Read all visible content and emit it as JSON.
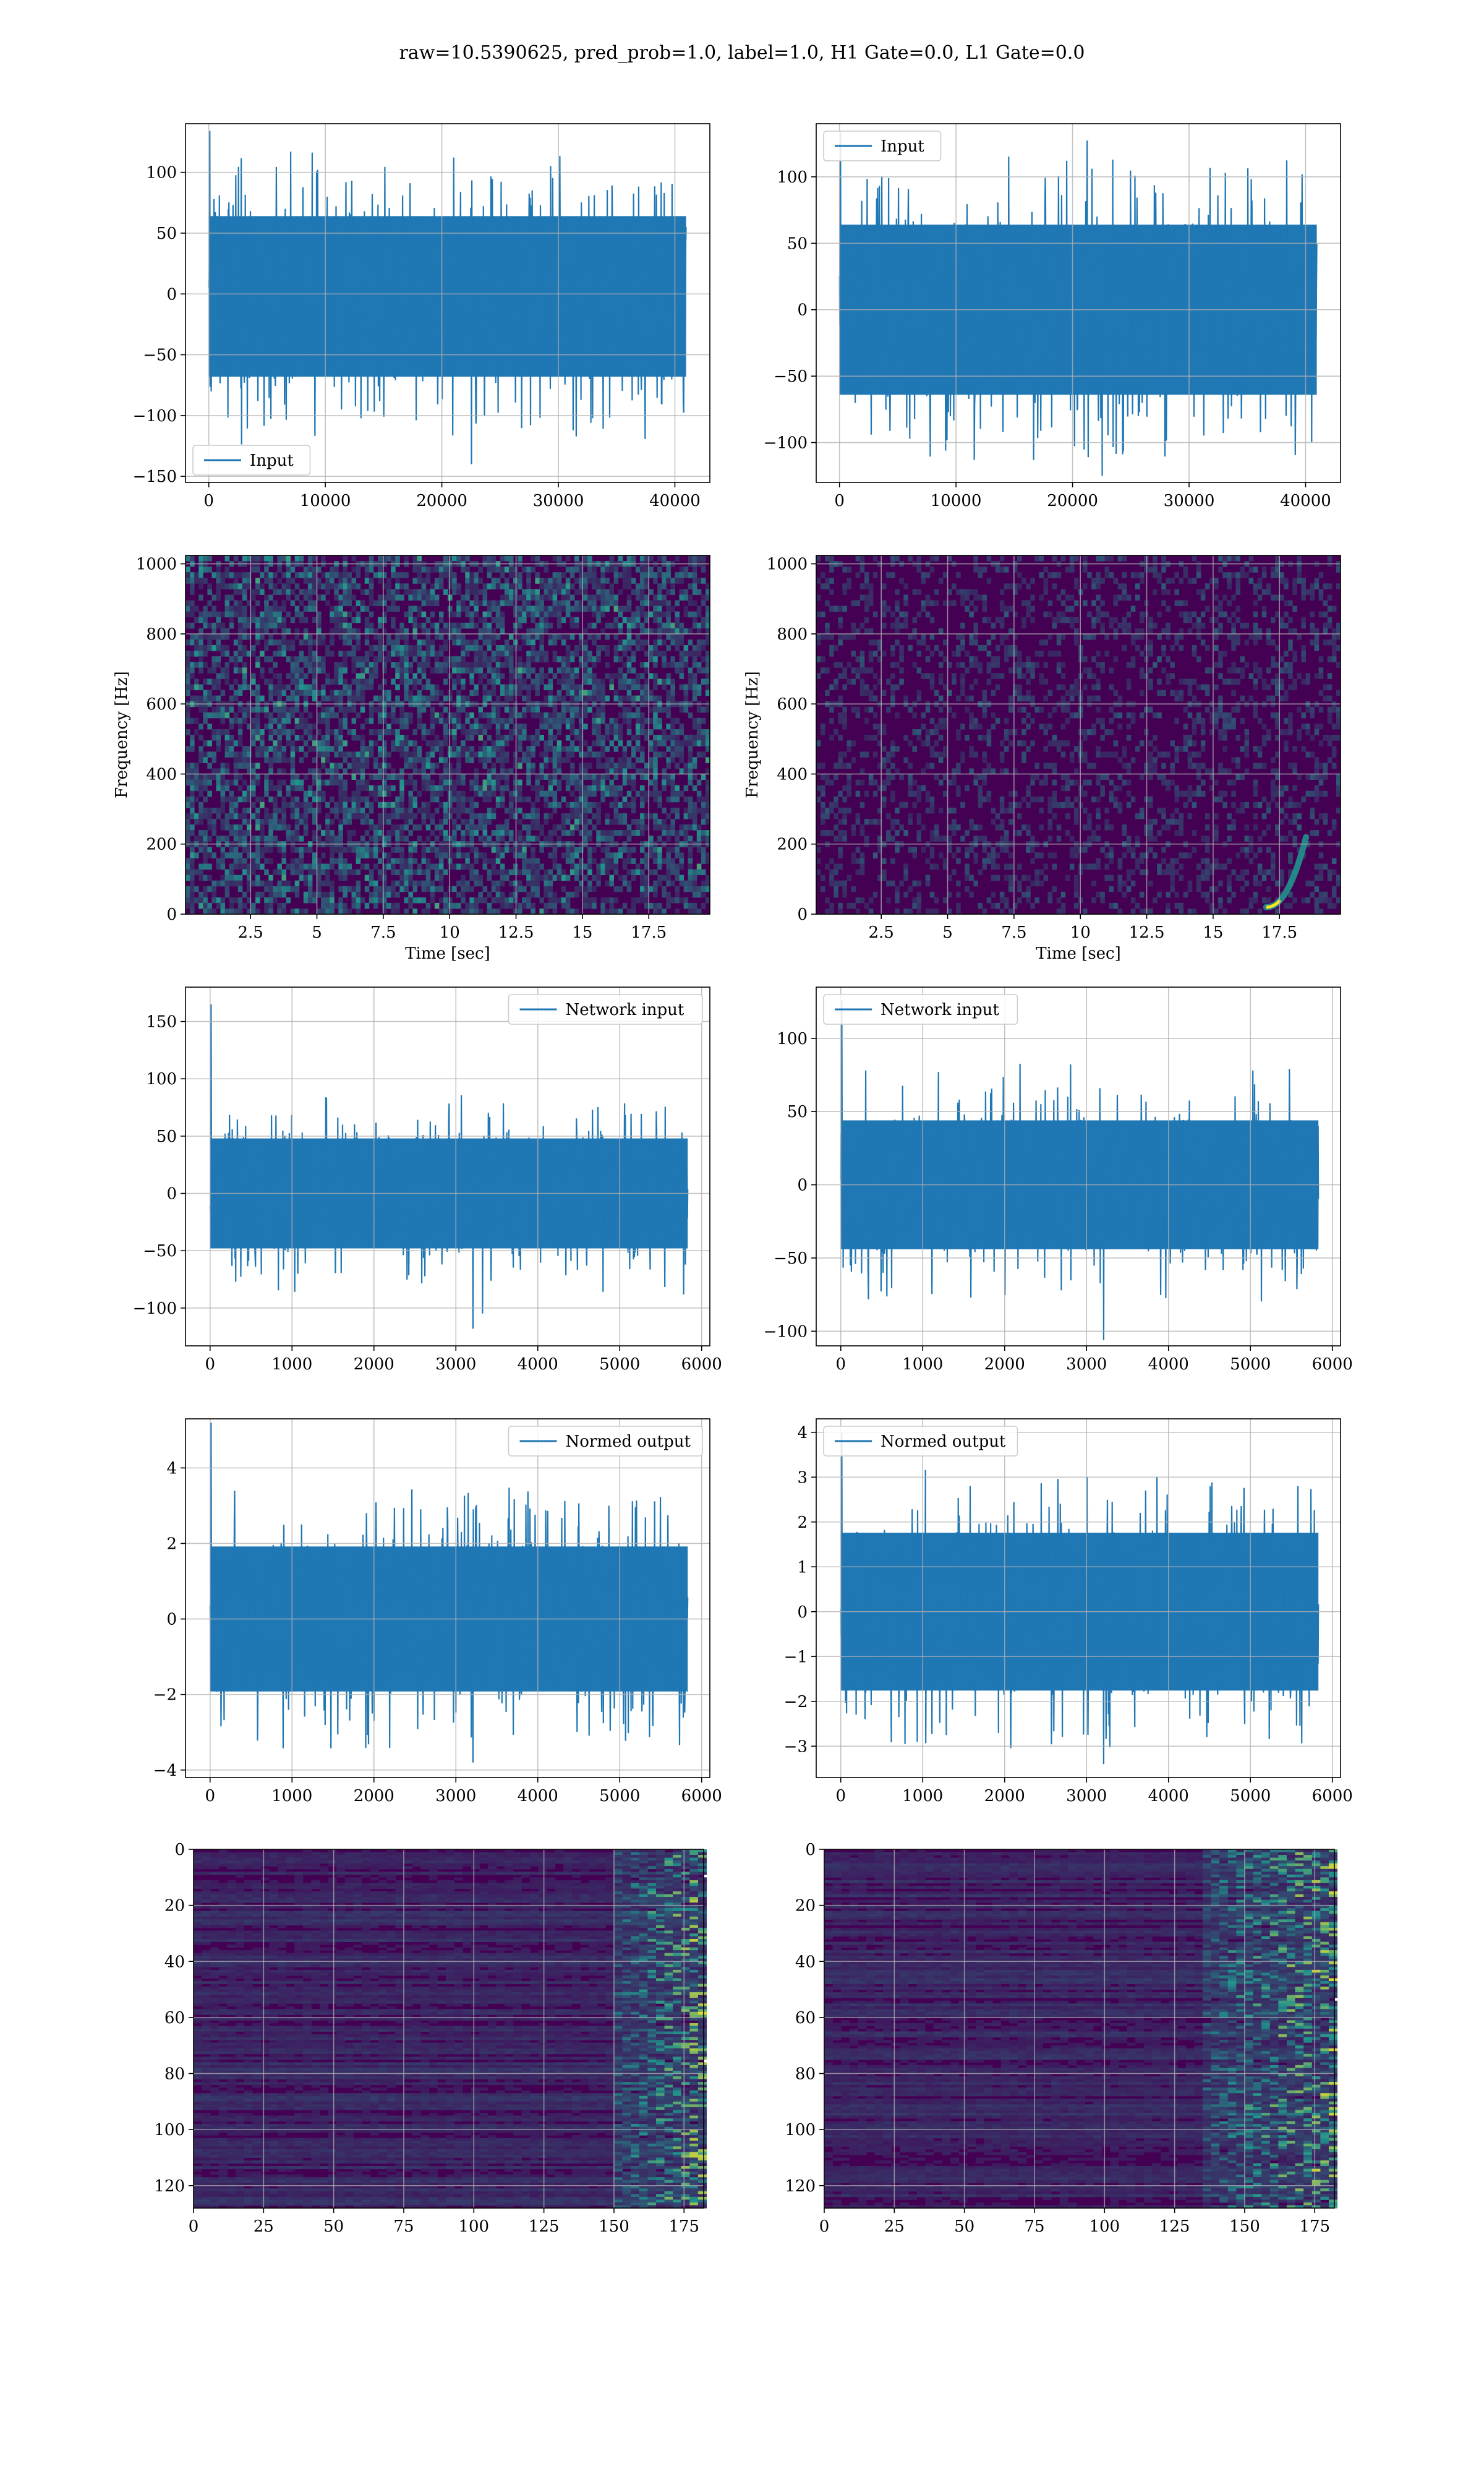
{
  "figure": {
    "title": "raw=10.5390625, pred_prob=1.0, label=1.0, H1 Gate=0.0, L1 Gate=0.0"
  },
  "colors": {
    "series": "#1f77b4",
    "grid": "#b0b0b0",
    "heat_low": "#440154",
    "heat_mid": "#21918c",
    "heat_high": "#fde725"
  },
  "chart_data": [
    {
      "id": "input-h1",
      "type": "line",
      "xlabel": "",
      "ylabel": "",
      "xlim": [
        -2000,
        43000
      ],
      "ylim": [
        -155,
        140
      ],
      "xticks": [
        0,
        10000,
        20000,
        30000,
        40000
      ],
      "yticks": [
        -150,
        -100,
        -50,
        0,
        50,
        100
      ],
      "grid": true,
      "legend": "lower left",
      "series": [
        {
          "name": "Input",
          "x_range": [
            0,
            40960
          ],
          "n_points": 40960,
          "typical_band": [
            -85,
            80
          ],
          "extremes": [
            -140,
            134
          ]
        }
      ]
    },
    {
      "id": "input-l1",
      "type": "line",
      "xlabel": "",
      "ylabel": "",
      "xlim": [
        -2000,
        43000
      ],
      "ylim": [
        -130,
        140
      ],
      "xticks": [
        0,
        10000,
        20000,
        30000,
        40000
      ],
      "yticks": [
        -100,
        -50,
        0,
        50,
        100
      ],
      "grid": true,
      "legend": "upper left",
      "series": [
        {
          "name": "Input",
          "x_range": [
            0,
            40960
          ],
          "n_points": 40960,
          "typical_band": [
            -80,
            80
          ],
          "extremes": [
            -125,
            134
          ]
        }
      ]
    },
    {
      "id": "spectrogram-h1",
      "type": "heatmap",
      "xlabel": "Time [sec]",
      "ylabel": "Frequency [Hz]",
      "xlim": [
        0.05,
        19.8
      ],
      "ylim": [
        0,
        1024
      ],
      "xticks": [
        2.5,
        5.0,
        7.5,
        10.0,
        12.5,
        15.0,
        17.5
      ],
      "yticks": [
        0,
        200,
        400,
        600,
        800,
        1000
      ],
      "grid": true,
      "description_values": "broadband noise, uniform power"
    },
    {
      "id": "spectrogram-l1",
      "type": "heatmap",
      "xlabel": "Time [sec]",
      "ylabel": "Frequency [Hz]",
      "xlim": [
        0.05,
        19.8
      ],
      "ylim": [
        0,
        1024
      ],
      "xticks": [
        2.5,
        5.0,
        7.5,
        10.0,
        12.5,
        15.0,
        17.5
      ],
      "yticks": [
        0,
        200,
        400,
        600,
        800,
        1000
      ],
      "grid": true,
      "features": [
        {
          "kind": "chirp",
          "t": [
            17.0,
            18.5
          ],
          "f": [
            20,
            220
          ]
        }
      ]
    },
    {
      "id": "network-input-h1",
      "type": "line",
      "xlabel": "",
      "ylabel": "",
      "xlim": [
        -300,
        6100
      ],
      "ylim": [
        -133,
        180
      ],
      "xticks": [
        0,
        1000,
        2000,
        3000,
        4000,
        5000,
        6000
      ],
      "yticks": [
        -100,
        -50,
        0,
        50,
        100,
        150
      ],
      "grid": true,
      "legend": "upper right",
      "series": [
        {
          "name": "Network input",
          "x_range": [
            0,
            5830
          ],
          "n_points": 5830,
          "typical_band": [
            -60,
            60
          ],
          "extremes": [
            -118,
            165
          ]
        }
      ]
    },
    {
      "id": "network-input-l1",
      "type": "line",
      "xlabel": "",
      "ylabel": "",
      "xlim": [
        -300,
        6100
      ],
      "ylim": [
        -110,
        135
      ],
      "xticks": [
        0,
        1000,
        2000,
        3000,
        4000,
        5000,
        6000
      ],
      "yticks": [
        -100,
        -50,
        0,
        50,
        100
      ],
      "grid": true,
      "legend": "upper left",
      "series": [
        {
          "name": "Network input",
          "x_range": [
            0,
            5830
          ],
          "n_points": 5830,
          "typical_band": [
            -55,
            55
          ],
          "extremes": [
            -106,
            126
          ]
        }
      ]
    },
    {
      "id": "normed-output-h1",
      "type": "line",
      "xlabel": "",
      "ylabel": "",
      "xlim": [
        -300,
        6100
      ],
      "ylim": [
        -4.2,
        5.3
      ],
      "xticks": [
        0,
        1000,
        2000,
        3000,
        4000,
        5000,
        6000
      ],
      "yticks": [
        -4,
        -2,
        0,
        2,
        4
      ],
      "grid": true,
      "legend": "upper right",
      "series": [
        {
          "name": "Normed output",
          "x_range": [
            0,
            5830
          ],
          "n_points": 5830,
          "typical_band": [
            -2.4,
            2.4
          ],
          "extremes": [
            -3.8,
            5.2
          ]
        }
      ]
    },
    {
      "id": "normed-output-l1",
      "type": "line",
      "xlabel": "",
      "ylabel": "",
      "xlim": [
        -300,
        6100
      ],
      "ylim": [
        -3.7,
        4.3
      ],
      "xticks": [
        0,
        1000,
        2000,
        3000,
        4000,
        5000,
        6000
      ],
      "yticks": [
        -3,
        -2,
        -1,
        0,
        1,
        2,
        3,
        4
      ],
      "grid": true,
      "legend": "upper left",
      "series": [
        {
          "name": "Normed output",
          "x_range": [
            0,
            5830
          ],
          "n_points": 5830,
          "typical_band": [
            -2.2,
            2.2
          ],
          "extremes": [
            -3.4,
            4.0
          ]
        }
      ]
    },
    {
      "id": "feature-map-h1",
      "type": "heatmap",
      "xlabel": "",
      "ylabel": "",
      "xlim": [
        0,
        182
      ],
      "ylim": [
        128,
        0
      ],
      "xticks": [
        0,
        25,
        50,
        75,
        100,
        125,
        150,
        175
      ],
      "yticks": [
        0,
        20,
        40,
        60,
        80,
        100,
        120
      ],
      "grid": true,
      "shape": [
        128,
        182
      ],
      "features": [
        {
          "kind": "activation_band",
          "cols": [
            150,
            182
          ]
        }
      ]
    },
    {
      "id": "feature-map-l1",
      "type": "heatmap",
      "xlabel": "",
      "ylabel": "",
      "xlim": [
        0,
        182
      ],
      "ylim": [
        128,
        0
      ],
      "xticks": [
        0,
        25,
        50,
        75,
        100,
        125,
        150,
        175
      ],
      "yticks": [
        0,
        20,
        40,
        60,
        80,
        100,
        120
      ],
      "grid": true,
      "shape": [
        128,
        182
      ],
      "features": [
        {
          "kind": "activation_band",
          "cols": [
            135,
            182
          ]
        }
      ]
    }
  ]
}
